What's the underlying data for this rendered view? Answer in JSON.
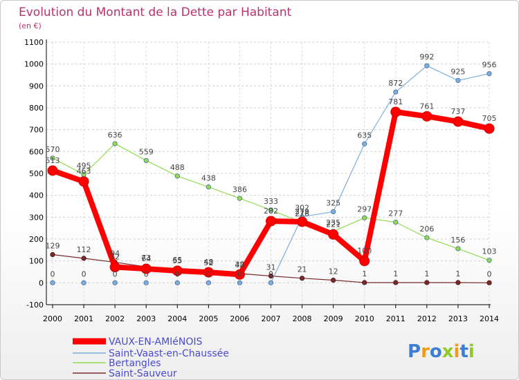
{
  "chart_data": {
    "type": "line",
    "title": "Evolution du Montant de la Dette par Habitant",
    "subtitle": "(en €)",
    "x": [
      "2000",
      "2001",
      "2002",
      "2003",
      "2004",
      "2005",
      "2006",
      "2007",
      "2008",
      "2009",
      "2010",
      "2011",
      "2012",
      "2013",
      "2014"
    ],
    "yticks": [
      -100,
      0,
      100,
      200,
      300,
      400,
      500,
      600,
      700,
      800,
      900,
      1000,
      1100
    ],
    "ylim": [
      -100,
      1100
    ],
    "grid": "horizontal dashed",
    "legend_position": "bottom-left",
    "series": [
      {
        "name": "VAUX-EN-AMIéNOIS",
        "color": "#ff0000",
        "values": [
          513,
          463,
          72,
          64,
          55,
          48,
          38,
          282,
          279,
          221,
          100,
          781,
          761,
          737,
          705
        ],
        "labels": [
          "513",
          "463",
          "72",
          "64",
          "55",
          "48",
          "38",
          "282",
          "279",
          "221",
          "100",
          "781",
          "761",
          "737",
          "705"
        ]
      },
      {
        "name": "Saint-Vaast-en-Chaussée",
        "color": "#7aaedc",
        "values": [
          0,
          0,
          0,
          0,
          0,
          0,
          0,
          0,
          302,
          325,
          635,
          872,
          992,
          925,
          956
        ],
        "labels": [
          "0",
          "0",
          "0",
          "0",
          "0",
          "0",
          "0",
          "0",
          "302",
          "325",
          "635",
          "872",
          "992",
          "925",
          "956"
        ]
      },
      {
        "name": "Bertangles",
        "color": "#90dc50",
        "values": [
          570,
          495,
          636,
          559,
          488,
          438,
          386,
          333,
          276,
          235,
          297,
          277,
          206,
          156,
          103
        ],
        "labels": [
          "570",
          "495",
          "636",
          "559",
          "488",
          "438",
          "386",
          "333",
          "276",
          "235",
          "297",
          "277",
          "206",
          "156",
          "103"
        ]
      },
      {
        "name": "Saint-Sauveur",
        "color": "#7a2a2a",
        "values": [
          129,
          112,
          94,
          73,
          65,
          52,
          42,
          31,
          21,
          12,
          1,
          1,
          1,
          1,
          0
        ],
        "labels": [
          "129",
          "112",
          "94",
          "73",
          "65",
          "52",
          "42",
          "31",
          "21",
          "12",
          "1",
          "1",
          "1",
          "1",
          "0"
        ]
      }
    ]
  },
  "logo": {
    "text": "Proxiti",
    "letters": [
      {
        "ch": "P",
        "color": "#3a7ed8"
      },
      {
        "ch": "r",
        "color": "#f09a1a"
      },
      {
        "ch": "o",
        "color": "#3a7ed8"
      },
      {
        "ch": "x",
        "color": "#90c828"
      },
      {
        "ch": "i",
        "color": "#f09a1a"
      },
      {
        "ch": "t",
        "color": "#3a7ed8"
      },
      {
        "ch": "i",
        "color": "#90c828"
      }
    ]
  }
}
